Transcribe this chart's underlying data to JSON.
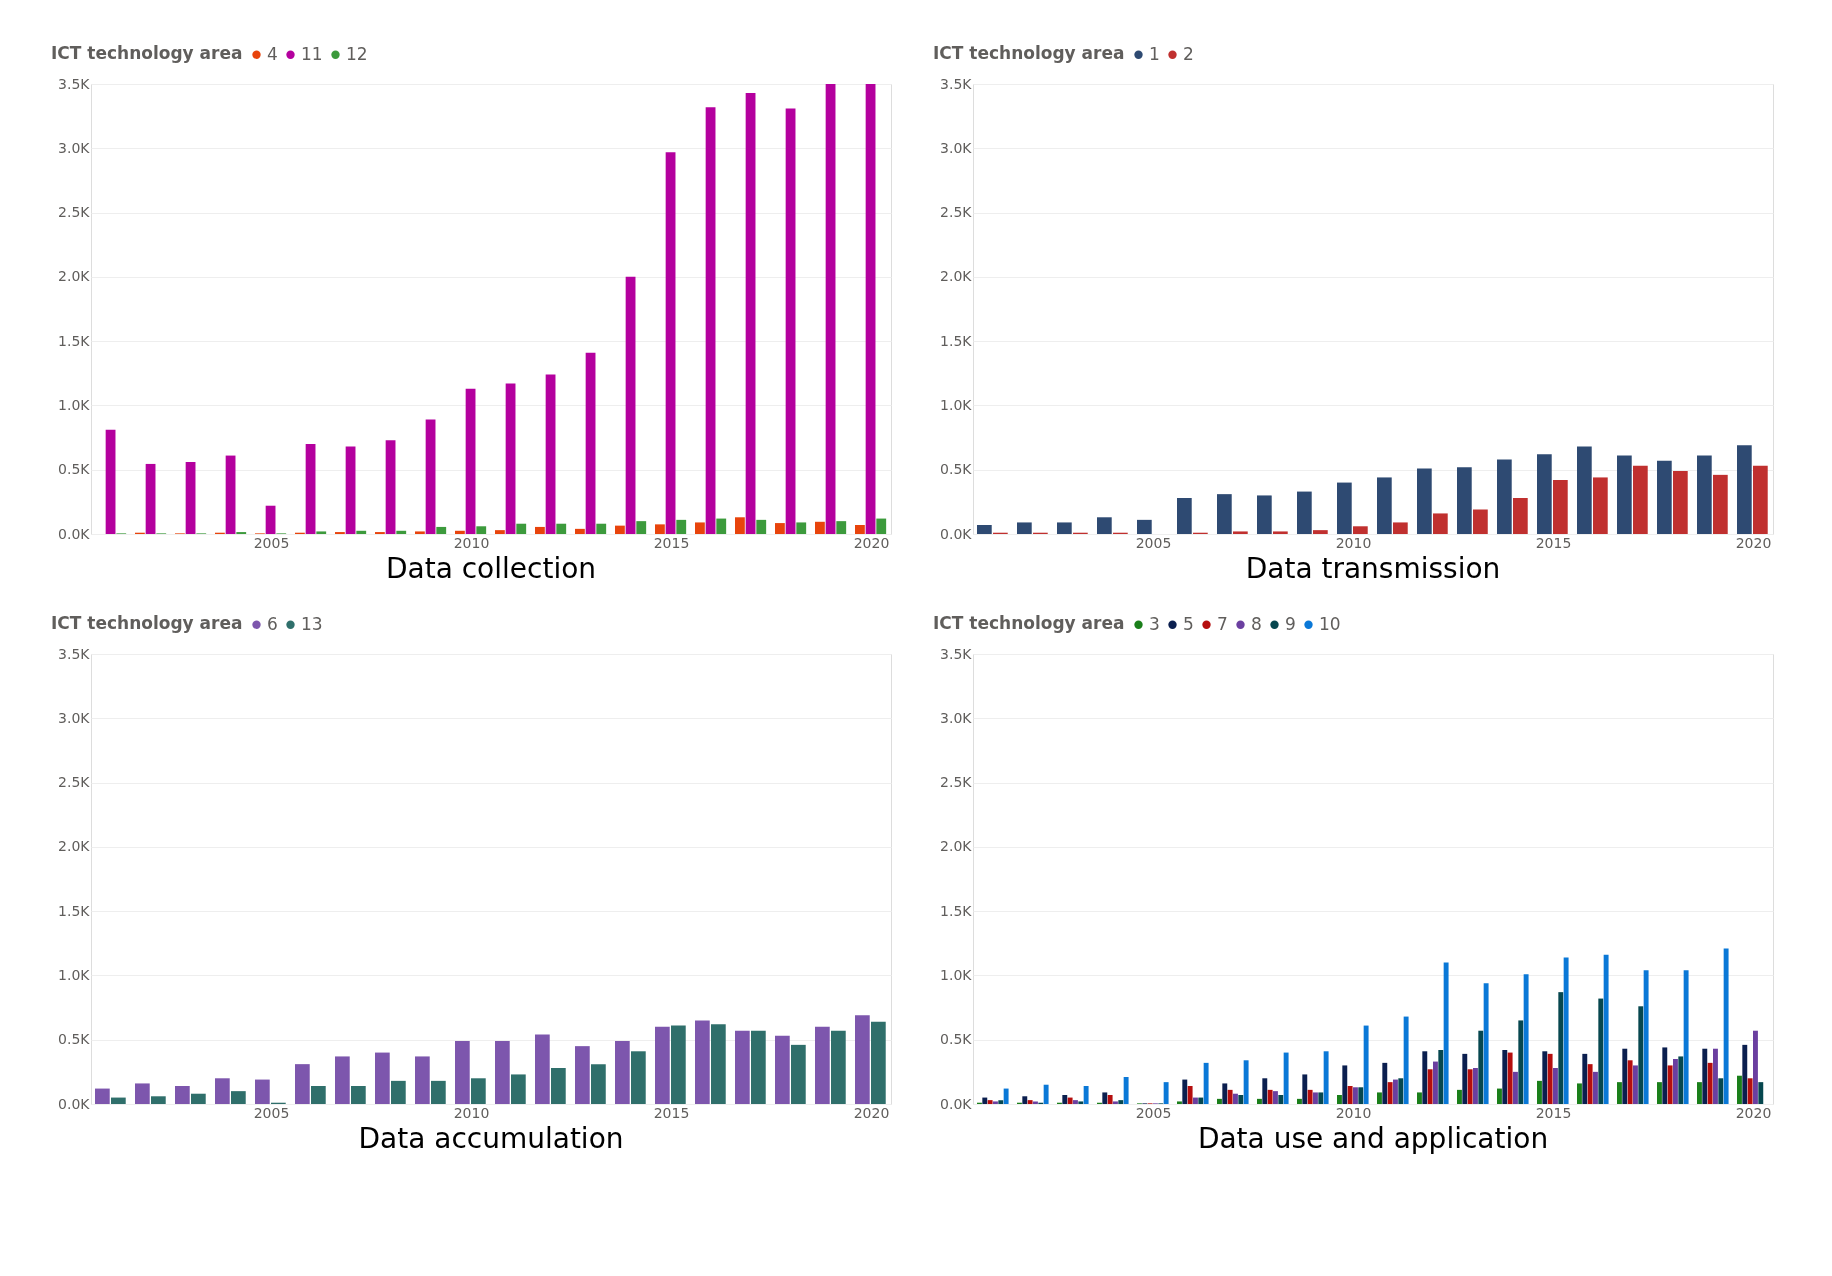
{
  "chart_data": [
    {
      "type": "bar",
      "title": "Data collection",
      "legend_title": "ICT technology area",
      "legend": "top left",
      "grid": "y",
      "x": [
        2001,
        2002,
        2003,
        2004,
        2005,
        2006,
        2007,
        2008,
        2009,
        2010,
        2011,
        2012,
        2013,
        2014,
        2015,
        2016,
        2017,
        2018,
        2019,
        2020
      ],
      "xlim": [
        2000.5,
        2020.5
      ],
      "xticks": [
        2005,
        2010,
        2015,
        2020
      ],
      "ylim": [
        0,
        3500
      ],
      "yticks": [
        {
          "value": 0,
          "label": "0.0K"
        },
        {
          "value": 500,
          "label": "0.5K"
        },
        {
          "value": 1000,
          "label": "1.0K"
        },
        {
          "value": 1500,
          "label": "1.5K"
        },
        {
          "value": 2000,
          "label": "2.0K"
        },
        {
          "value": 2500,
          "label": "2.5K"
        },
        {
          "value": 3000,
          "label": "3.0K"
        },
        {
          "value": 3500,
          "label": "3.5K"
        }
      ],
      "series": [
        {
          "name": "4",
          "color": "#e8440c",
          "values": [
            0,
            10,
            5,
            10,
            5,
            10,
            15,
            15,
            20,
            25,
            30,
            55,
            40,
            65,
            75,
            90,
            130,
            85,
            95,
            70
          ]
        },
        {
          "name": "11",
          "color": "#b4009e",
          "values": [
            810,
            545,
            560,
            610,
            220,
            700,
            680,
            730,
            890,
            1130,
            1170,
            1240,
            1410,
            2000,
            2970,
            3320,
            3430,
            3310,
            3500,
            3500
          ]
        },
        {
          "name": "12",
          "color": "#3c9a3c",
          "values": [
            5,
            5,
            5,
            15,
            5,
            20,
            25,
            25,
            55,
            60,
            80,
            80,
            80,
            100,
            110,
            120,
            110,
            90,
            100,
            120
          ]
        }
      ]
    },
    {
      "type": "bar",
      "title": "Data transmission",
      "legend_title": "ICT technology area",
      "legend": "top left",
      "grid": "y",
      "x": [
        2001,
        2002,
        2003,
        2004,
        2005,
        2006,
        2007,
        2008,
        2009,
        2010,
        2011,
        2012,
        2013,
        2014,
        2015,
        2016,
        2017,
        2018,
        2019,
        2020
      ],
      "xlim": [
        2000.5,
        2020.5
      ],
      "xticks": [
        2005,
        2010,
        2015,
        2020
      ],
      "ylim": [
        0,
        3500
      ],
      "yticks": [
        {
          "value": 0,
          "label": "0.0K"
        },
        {
          "value": 500,
          "label": "0.5K"
        },
        {
          "value": 1000,
          "label": "1.0K"
        },
        {
          "value": 1500,
          "label": "1.5K"
        },
        {
          "value": 2000,
          "label": "2.0K"
        },
        {
          "value": 2500,
          "label": "2.5K"
        },
        {
          "value": 3000,
          "label": "3.0K"
        },
        {
          "value": 3500,
          "label": "3.5K"
        }
      ],
      "series": [
        {
          "name": "1",
          "color": "#2e4a72",
          "values": [
            70,
            90,
            90,
            130,
            110,
            280,
            310,
            300,
            330,
            400,
            440,
            510,
            520,
            580,
            620,
            680,
            610,
            570,
            610,
            690
          ]
        },
        {
          "name": "2",
          "color": "#c0302f",
          "values": [
            10,
            10,
            10,
            10,
            0,
            10,
            20,
            20,
            30,
            60,
            90,
            160,
            190,
            280,
            420,
            440,
            530,
            490,
            460,
            530
          ]
        }
      ]
    },
    {
      "type": "bar",
      "title": "Data accumulation",
      "legend_title": "ICT technology area",
      "legend": "top left",
      "grid": "y",
      "x": [
        2001,
        2002,
        2003,
        2004,
        2005,
        2006,
        2007,
        2008,
        2009,
        2010,
        2011,
        2012,
        2013,
        2014,
        2015,
        2016,
        2017,
        2018,
        2019,
        2020
      ],
      "xlim": [
        2000.5,
        2020.5
      ],
      "xticks": [
        2005,
        2010,
        2015,
        2020
      ],
      "ylim": [
        0,
        3500
      ],
      "yticks": [
        {
          "value": 0,
          "label": "0.0K"
        },
        {
          "value": 500,
          "label": "0.5K"
        },
        {
          "value": 1000,
          "label": "1.0K"
        },
        {
          "value": 1500,
          "label": "1.5K"
        },
        {
          "value": 2000,
          "label": "2.0K"
        },
        {
          "value": 2500,
          "label": "2.5K"
        },
        {
          "value": 3000,
          "label": "3.0K"
        },
        {
          "value": 3500,
          "label": "3.5K"
        }
      ],
      "series": [
        {
          "name": "6",
          "color": "#7d56ad",
          "values": [
            120,
            160,
            140,
            200,
            190,
            310,
            370,
            400,
            370,
            490,
            490,
            540,
            450,
            490,
            600,
            650,
            570,
            530,
            600,
            690
          ]
        },
        {
          "name": "13",
          "color": "#2f6f6b",
          "values": [
            50,
            60,
            80,
            100,
            10,
            140,
            140,
            180,
            180,
            200,
            230,
            280,
            310,
            410,
            610,
            620,
            570,
            460,
            570,
            640
          ]
        }
      ]
    },
    {
      "type": "bar",
      "title": "Data use and application",
      "legend_title": "ICT technology area",
      "legend": "top left",
      "grid": "y",
      "x": [
        2001,
        2002,
        2003,
        2004,
        2005,
        2006,
        2007,
        2008,
        2009,
        2010,
        2011,
        2012,
        2013,
        2014,
        2015,
        2016,
        2017,
        2018,
        2019,
        2020
      ],
      "xlim": [
        2000.5,
        2020.5
      ],
      "xticks": [
        2005,
        2010,
        2015,
        2020
      ],
      "ylim": [
        0,
        3500
      ],
      "yticks": [
        {
          "value": 0,
          "label": "0.0K"
        },
        {
          "value": 500,
          "label": "0.5K"
        },
        {
          "value": 1000,
          "label": "1.0K"
        },
        {
          "value": 1500,
          "label": "1.5K"
        },
        {
          "value": 2000,
          "label": "2.0K"
        },
        {
          "value": 2500,
          "label": "2.5K"
        },
        {
          "value": 3000,
          "label": "3.0K"
        },
        {
          "value": 3500,
          "label": "3.5K"
        }
      ],
      "series": [
        {
          "name": "3",
          "color": "#1a7f1a",
          "values": [
            10,
            10,
            10,
            10,
            5,
            20,
            40,
            40,
            40,
            70,
            90,
            90,
            110,
            120,
            180,
            160,
            170,
            170,
            170,
            220
          ]
        },
        {
          "name": "5",
          "color": "#0b1f4f",
          "values": [
            50,
            60,
            70,
            90,
            5,
            190,
            160,
            200,
            230,
            300,
            320,
            410,
            390,
            420,
            410,
            390,
            430,
            440,
            430,
            460
          ]
        },
        {
          "name": "7",
          "color": "#b50e0e",
          "values": [
            30,
            30,
            50,
            70,
            5,
            140,
            110,
            110,
            110,
            140,
            170,
            270,
            270,
            400,
            390,
            310,
            340,
            300,
            320,
            200
          ]
        },
        {
          "name": "8",
          "color": "#6b3fa0",
          "values": [
            20,
            20,
            30,
            20,
            5,
            50,
            80,
            100,
            90,
            130,
            190,
            330,
            280,
            250,
            280,
            250,
            300,
            350,
            430,
            570
          ]
        },
        {
          "name": "9",
          "color": "#06474f",
          "values": [
            30,
            10,
            20,
            30,
            5,
            50,
            70,
            70,
            90,
            130,
            200,
            420,
            570,
            650,
            870,
            820,
            760,
            370,
            200,
            170
          ]
        },
        {
          "name": "10",
          "color": "#0a78d7",
          "values": [
            120,
            150,
            140,
            210,
            170,
            320,
            340,
            400,
            410,
            610,
            680,
            1100,
            940,
            1010,
            1140,
            1160,
            1040,
            1040,
            1210,
            null
          ]
        }
      ]
    }
  ]
}
